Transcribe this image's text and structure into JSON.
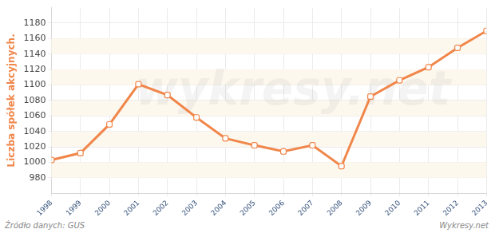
{
  "chart_data": {
    "type": "line",
    "y_label": "Liczba spółek akcyjnych.",
    "categories": [
      "1998",
      "1999",
      "2000",
      "2001",
      "2002",
      "2003",
      "2004",
      "2005",
      "2006",
      "2007",
      "2008",
      "2009",
      "2010",
      "2011",
      "2012",
      "2013"
    ],
    "values": [
      1003,
      1012,
      1049,
      1101,
      1087,
      1058,
      1031,
      1022,
      1014,
      1022,
      995,
      1085,
      1106,
      1123,
      1148,
      1170
    ],
    "color": "#f0864a",
    "marker": "square",
    "ylim": [
      960,
      1200
    ],
    "yticks": [
      980,
      1000,
      1020,
      1040,
      1060,
      1080,
      1100,
      1120,
      1140,
      1160,
      1180
    ],
    "grid": true,
    "annotations": [
      "Źródło danych: GUS",
      "Wykresy.net",
      "wykresy.net"
    ]
  }
}
